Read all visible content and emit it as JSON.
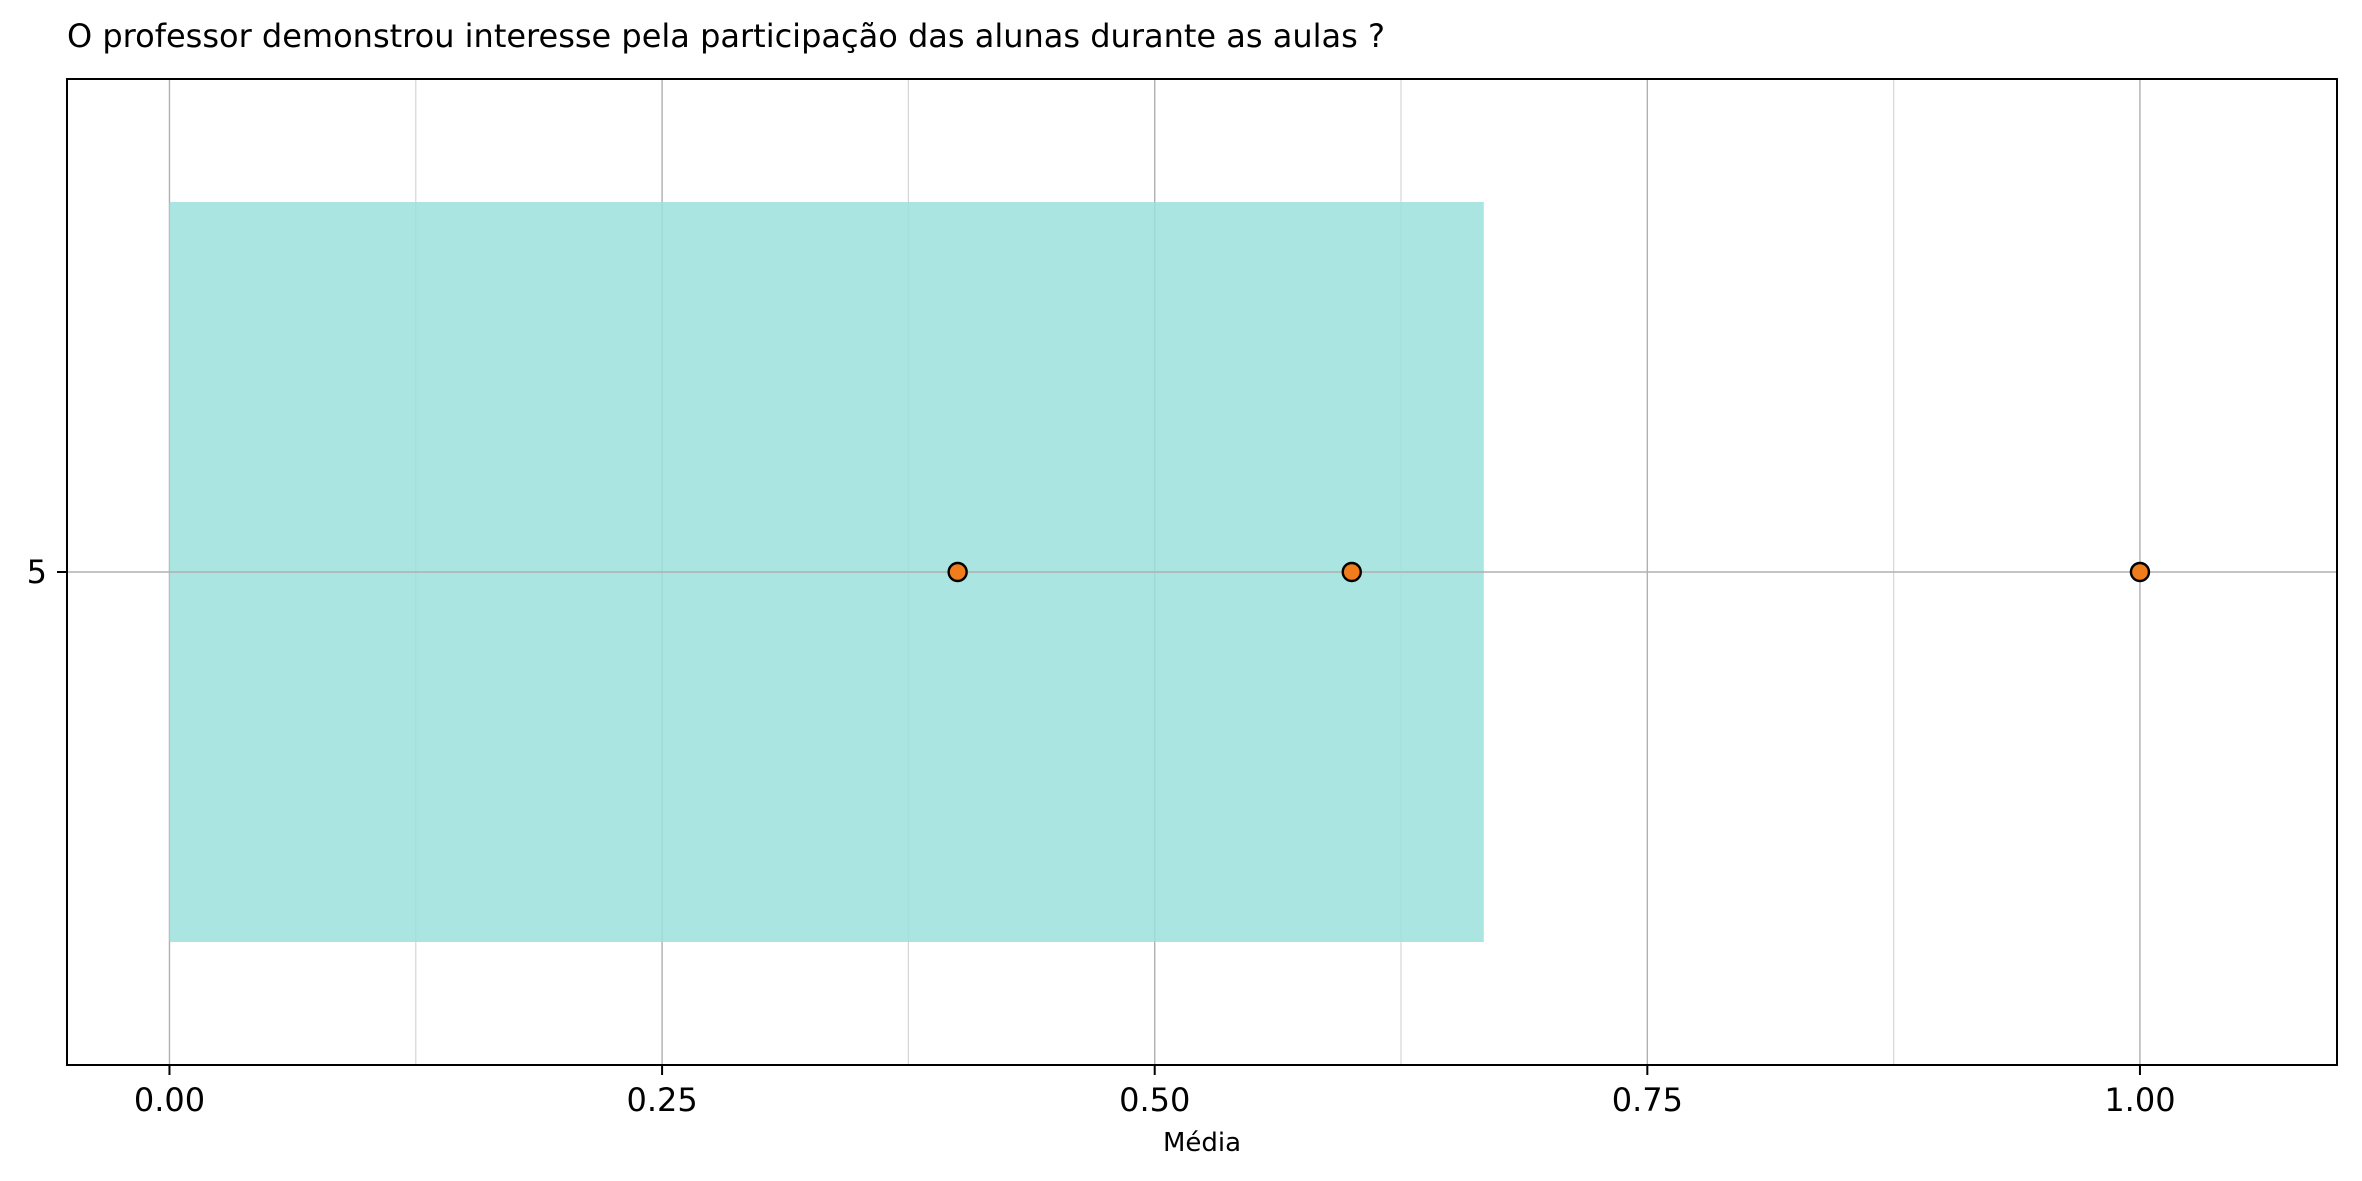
{
  "chart_data": {
    "type": "bar",
    "orientation": "horizontal",
    "title": "O professor demonstrou interesse pela participação das alunas durante as aulas ?",
    "xlabel": "Média",
    "ylabel": "",
    "categories": [
      "5"
    ],
    "values": [
      0.667
    ],
    "bar_color": "#9be0dc",
    "points": [
      {
        "x": 0.4,
        "y": "5"
      },
      {
        "x": 0.6,
        "y": "5"
      },
      {
        "x": 1.0,
        "y": "5"
      }
    ],
    "point_color": "#f07c1c",
    "xlim": [
      -0.052,
      1.1
    ],
    "xticks": [
      0.0,
      0.25,
      0.5,
      0.75,
      1.0
    ],
    "xtick_labels": [
      "0.00",
      "0.25",
      "0.50",
      "0.75",
      "1.00"
    ],
    "xticks_minor": [
      0.125,
      0.375,
      0.625,
      0.875
    ],
    "grid": true
  }
}
